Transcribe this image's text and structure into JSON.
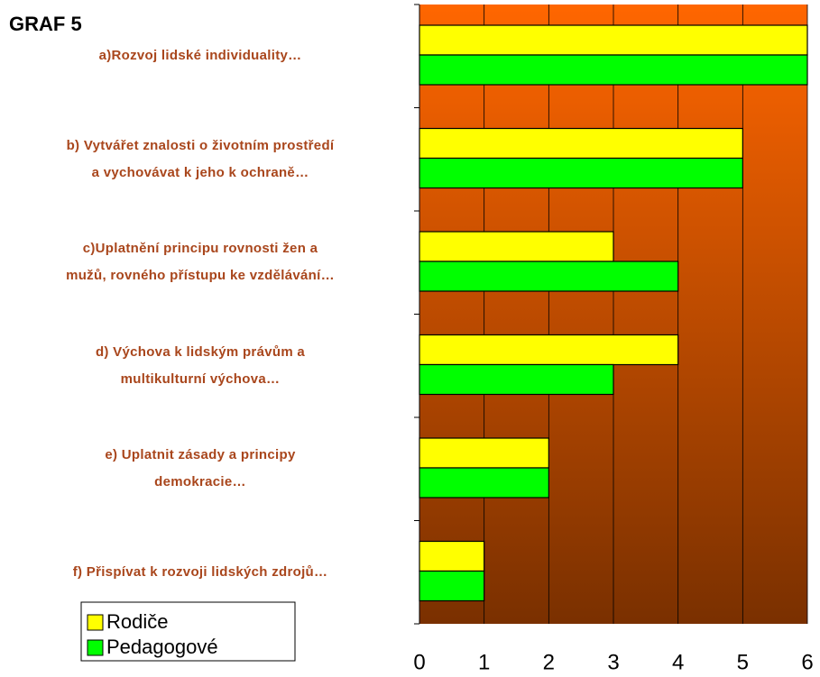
{
  "chart_data": {
    "type": "barh",
    "title": "GRAF 5",
    "categories": [
      "a)Rozvoj lidské individuality…",
      "b) Vytvářet znalosti o životním prostředí\na vychovávat k jeho k ochraně…",
      "c)Uplatnění principu rovnosti žen a\nmužů, rovného přístupu ke vzdělávání…",
      "d) Výchova k lidským právům a\nmultikulturní výchova…",
      "e) Uplatnit zásady a principy\ndemokracie…",
      "f) Přispívat k rozvoji lidských zdrojů…"
    ],
    "series": [
      {
        "name": "Rodiče",
        "color": "#ffff00",
        "values": [
          6,
          5,
          3,
          4,
          2,
          1
        ]
      },
      {
        "name": "Pedagogové",
        "color": "#00ff00",
        "values": [
          6,
          5,
          4,
          3,
          2,
          1
        ]
      }
    ],
    "xlim": [
      0,
      6
    ],
    "xticks": [
      0,
      1,
      2,
      3,
      4,
      5,
      6
    ],
    "grid": true,
    "legend": "lower left"
  }
}
